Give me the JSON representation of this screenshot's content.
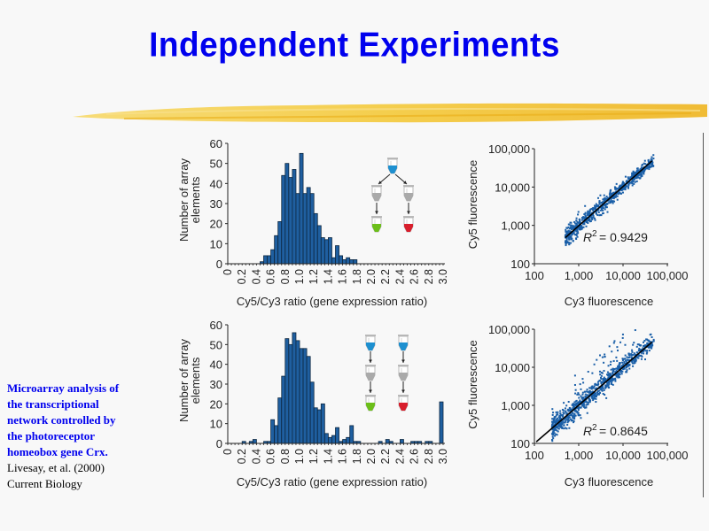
{
  "slide": {
    "title": "Independent Experiments",
    "caption_highlight": [
      "Microarray analysis of",
      "the transcriptional",
      "network controlled by",
      "the photoreceptor",
      "homeobox gene Crx."
    ],
    "caption_reference": [
      "Livesay, et al. (2000)",
      "Current Biology"
    ],
    "colors": {
      "title": "#0000ee",
      "bars": "#1f5fa0",
      "points": "#1a5fa8",
      "brush": "#f2c230"
    }
  },
  "chart_data": [
    {
      "type": "bar",
      "panel": "top-left",
      "xlabel": "Cy5/Cy3 ratio (gene expression ratio)",
      "ylabel": "Number of array elements",
      "ylabel_lines": [
        "Number of array",
        "elements"
      ],
      "xlim": [
        0,
        3.0
      ],
      "ylim": [
        0,
        60
      ],
      "x_ticks": [
        "0",
        "0.2",
        "0.4",
        "0.6",
        "0.8",
        "1.0",
        "1.2",
        "1.4",
        "1.6",
        "1.8",
        "2.0",
        "2.2",
        "2.4",
        "2.6",
        "2.8",
        "3.0"
      ],
      "y_ticks": [
        "0",
        "10",
        "20",
        "30",
        "40",
        "50",
        "60"
      ],
      "bin_width": 0.05,
      "bins": [
        {
          "x": 0.45,
          "y": 1
        },
        {
          "x": 0.5,
          "y": 4
        },
        {
          "x": 0.55,
          "y": 4
        },
        {
          "x": 0.6,
          "y": 7
        },
        {
          "x": 0.65,
          "y": 14
        },
        {
          "x": 0.7,
          "y": 21
        },
        {
          "x": 0.75,
          "y": 44
        },
        {
          "x": 0.8,
          "y": 50
        },
        {
          "x": 0.85,
          "y": 43
        },
        {
          "x": 0.9,
          "y": 47
        },
        {
          "x": 0.95,
          "y": 35
        },
        {
          "x": 1.0,
          "y": 55
        },
        {
          "x": 1.05,
          "y": 35
        },
        {
          "x": 1.1,
          "y": 38
        },
        {
          "x": 1.15,
          "y": 35
        },
        {
          "x": 1.2,
          "y": 25
        },
        {
          "x": 1.25,
          "y": 19
        },
        {
          "x": 1.3,
          "y": 13
        },
        {
          "x": 1.35,
          "y": 12
        },
        {
          "x": 1.4,
          "y": 13
        },
        {
          "x": 1.45,
          "y": 3
        },
        {
          "x": 1.5,
          "y": 9
        },
        {
          "x": 1.55,
          "y": 4
        },
        {
          "x": 1.6,
          "y": 2
        },
        {
          "x": 1.65,
          "y": 3
        },
        {
          "x": 1.7,
          "y": 2
        },
        {
          "x": 1.75,
          "y": 2
        }
      ],
      "inset": "split-sample tube diagram (blue source split into green and red)"
    },
    {
      "type": "scatter",
      "panel": "top-right",
      "xlabel": "Cy3 fluorescence",
      "ylabel": "Cy5 fluorescence",
      "scale": "log",
      "xlim": [
        100,
        100000
      ],
      "ylim": [
        100,
        100000
      ],
      "x_ticks": [
        "100",
        "1,000",
        "10,000",
        "100,000"
      ],
      "y_ticks": [
        "100",
        "1,000",
        "10,000",
        "100,000"
      ],
      "annotation": "R2 = 0.9429",
      "r2_label": "R",
      "r2_sup": "2",
      "r2_value": "= 0.9429",
      "fit_line": [
        [
          500,
          480
        ],
        [
          45000,
          48000
        ]
      ],
      "cloud": {
        "x_range": [
          500,
          50000
        ],
        "spread": 0.12,
        "n": 700,
        "outliers": 0
      }
    },
    {
      "type": "bar",
      "panel": "bottom-left",
      "xlabel": "Cy5/Cy3 ratio (gene expression ratio)",
      "ylabel": "Number of array elements",
      "ylabel_lines": [
        "Number of array",
        "elements"
      ],
      "xlim": [
        0,
        3.0
      ],
      "ylim": [
        0,
        60
      ],
      "x_ticks": [
        "0",
        "0.2",
        "0.4",
        "0.6",
        "0.8",
        "1.0",
        "1.2",
        "1.4",
        "1.6",
        "1.8",
        "2.0",
        "2.2",
        "2.4",
        "2.6",
        "2.8",
        "3.0"
      ],
      "y_ticks": [
        "0",
        "10",
        "20",
        "30",
        "40",
        "50",
        "60"
      ],
      "bin_width": 0.05,
      "bins": [
        {
          "x": 0.2,
          "y": 1
        },
        {
          "x": 0.3,
          "y": 1
        },
        {
          "x": 0.35,
          "y": 2
        },
        {
          "x": 0.5,
          "y": 1
        },
        {
          "x": 0.55,
          "y": 1
        },
        {
          "x": 0.6,
          "y": 12
        },
        {
          "x": 0.65,
          "y": 9
        },
        {
          "x": 0.7,
          "y": 23
        },
        {
          "x": 0.75,
          "y": 34
        },
        {
          "x": 0.8,
          "y": 53
        },
        {
          "x": 0.85,
          "y": 50
        },
        {
          "x": 0.9,
          "y": 56
        },
        {
          "x": 0.95,
          "y": 52
        },
        {
          "x": 1.0,
          "y": 48
        },
        {
          "x": 1.05,
          "y": 48
        },
        {
          "x": 1.1,
          "y": 44
        },
        {
          "x": 1.15,
          "y": 31
        },
        {
          "x": 1.2,
          "y": 18
        },
        {
          "x": 1.25,
          "y": 17
        },
        {
          "x": 1.3,
          "y": 20
        },
        {
          "x": 1.35,
          "y": 5
        },
        {
          "x": 1.4,
          "y": 3
        },
        {
          "x": 1.45,
          "y": 4
        },
        {
          "x": 1.5,
          "y": 8
        },
        {
          "x": 1.55,
          "y": 1
        },
        {
          "x": 1.6,
          "y": 2
        },
        {
          "x": 1.65,
          "y": 3
        },
        {
          "x": 1.7,
          "y": 9
        },
        {
          "x": 1.75,
          "y": 1
        },
        {
          "x": 1.8,
          "y": 1
        },
        {
          "x": 2.1,
          "y": 1
        },
        {
          "x": 2.2,
          "y": 2
        },
        {
          "x": 2.25,
          "y": 1
        },
        {
          "x": 2.4,
          "y": 2
        },
        {
          "x": 2.55,
          "y": 1
        },
        {
          "x": 2.6,
          "y": 1
        },
        {
          "x": 2.65,
          "y": 1
        },
        {
          "x": 2.75,
          "y": 1
        },
        {
          "x": 2.8,
          "y": 1
        },
        {
          "x": 2.95,
          "y": 21
        }
      ],
      "inset": "two parallel tube series (blue to green, blue to red)"
    },
    {
      "type": "scatter",
      "panel": "bottom-right",
      "xlabel": "Cy3 fluorescence",
      "ylabel": "Cy5 fluorescence",
      "scale": "log",
      "xlim": [
        100,
        100000
      ],
      "ylim": [
        100,
        100000
      ],
      "x_ticks": [
        "100",
        "1,000",
        "10,000",
        "100,000"
      ],
      "y_ticks": [
        "100",
        "1,000",
        "10,000",
        "100,000"
      ],
      "annotation": "R2 = 0.8645",
      "r2_label": "R",
      "r2_sup": "2",
      "r2_value": "= 0.8645",
      "fit_line": [
        [
          110,
          110
        ],
        [
          45000,
          46000
        ]
      ],
      "cloud": {
        "x_range": [
          250,
          50000
        ],
        "spread": 0.16,
        "n": 800,
        "outliers": 40
      }
    }
  ]
}
